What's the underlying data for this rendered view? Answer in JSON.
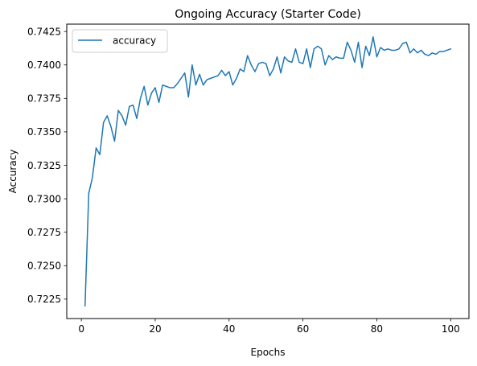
{
  "chart_data": {
    "type": "line",
    "title": "Ongoing Accuracy (Starter Code)",
    "xlabel": "Epochs",
    "ylabel": "Accuracy",
    "xlim": [
      -3.95,
      104.95
    ],
    "ylim": [
      0.72105,
      0.74305
    ],
    "x_ticks": [
      0,
      20,
      40,
      60,
      80,
      100
    ],
    "x_tick_labels": [
      "0",
      "20",
      "40",
      "60",
      "80",
      "100"
    ],
    "y_ticks": [
      0.7225,
      0.725,
      0.7275,
      0.73,
      0.7325,
      0.735,
      0.7375,
      0.74,
      0.7425
    ],
    "y_tick_labels": [
      "0.7225",
      "0.7250",
      "0.7275",
      "0.7300",
      "0.7325",
      "0.7350",
      "0.7375",
      "0.7400",
      "0.7425"
    ],
    "grid": false,
    "legend_position": "top-left",
    "series": [
      {
        "name": "accuracy",
        "color": "#1f77b4",
        "x": [
          1,
          2,
          3,
          4,
          5,
          6,
          7,
          8,
          9,
          10,
          11,
          12,
          13,
          14,
          15,
          16,
          17,
          18,
          19,
          20,
          21,
          22,
          23,
          24,
          25,
          26,
          27,
          28,
          29,
          30,
          31,
          32,
          33,
          34,
          35,
          36,
          37,
          38,
          39,
          40,
          41,
          42,
          43,
          44,
          45,
          46,
          47,
          48,
          49,
          50,
          51,
          52,
          53,
          54,
          55,
          56,
          57,
          58,
          59,
          60,
          61,
          62,
          63,
          64,
          65,
          66,
          67,
          68,
          69,
          70,
          71,
          72,
          73,
          74,
          75,
          76,
          77,
          78,
          79,
          80,
          81,
          82,
          83,
          84,
          85,
          86,
          87,
          88,
          89,
          90,
          91,
          92,
          93,
          94,
          95,
          96,
          97,
          98,
          99,
          100
        ],
        "values": [
          0.722,
          0.7304,
          0.7316,
          0.7338,
          0.7333,
          0.7357,
          0.7362,
          0.7354,
          0.7343,
          0.7366,
          0.7362,
          0.7355,
          0.7369,
          0.737,
          0.736,
          0.7375,
          0.7384,
          0.737,
          0.7379,
          0.7383,
          0.7372,
          0.7385,
          0.7384,
          0.7383,
          0.7383,
          0.7386,
          0.739,
          0.7394,
          0.7376,
          0.74,
          0.7385,
          0.7393,
          0.7385,
          0.7389,
          0.739,
          0.7391,
          0.7392,
          0.7396,
          0.7392,
          0.7395,
          0.7385,
          0.739,
          0.7397,
          0.7395,
          0.7407,
          0.74,
          0.7395,
          0.7401,
          0.7402,
          0.7401,
          0.7392,
          0.7397,
          0.7406,
          0.7394,
          0.7406,
          0.7403,
          0.7402,
          0.7412,
          0.7402,
          0.7401,
          0.7412,
          0.7398,
          0.7412,
          0.7414,
          0.7412,
          0.74,
          0.7407,
          0.7404,
          0.7406,
          0.7405,
          0.7405,
          0.7417,
          0.7411,
          0.7402,
          0.7417,
          0.7398,
          0.7414,
          0.7407,
          0.7421,
          0.7406,
          0.7413,
          0.7411,
          0.7412,
          0.7411,
          0.7411,
          0.7412,
          0.7416,
          0.7417,
          0.7409,
          0.7412,
          0.7409,
          0.7411,
          0.7408,
          0.7407,
          0.7409,
          0.7408,
          0.741,
          0.741,
          0.7411,
          0.7412
        ]
      }
    ]
  }
}
